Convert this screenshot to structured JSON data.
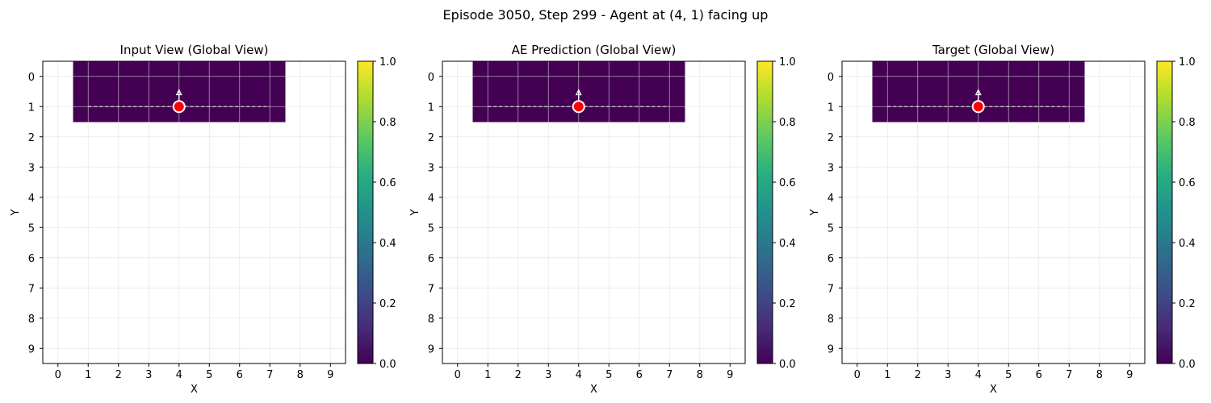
{
  "figure": {
    "suptitle": "Episode 3050, Step 299 - Agent at (4, 1) facing up"
  },
  "chart_data": [
    {
      "type": "heatmap",
      "title": "Input View (Global View)",
      "xlabel": "X",
      "ylabel": "Y",
      "xlim": [
        -0.5,
        9.5
      ],
      "ylim": [
        9.5,
        -0.5
      ],
      "xticks": [
        "0",
        "1",
        "2",
        "3",
        "4",
        "5",
        "6",
        "7",
        "8",
        "9"
      ],
      "yticks": [
        "0",
        "1",
        "2",
        "3",
        "4",
        "5",
        "6",
        "7",
        "8",
        "9"
      ],
      "grid": true,
      "cells": {
        "x_range": [
          1,
          7
        ],
        "y_range": [
          0,
          1
        ],
        "value": 0.0
      },
      "agent": {
        "x": 4,
        "y": 1,
        "facing": "up"
      },
      "path": {
        "y": 1,
        "x_from": 1,
        "x_to": 7
      },
      "colorbar": {
        "min": 0.0,
        "max": 1.0,
        "ticks": [
          "0.0",
          "0.2",
          "0.4",
          "0.6",
          "0.8",
          "1.0"
        ],
        "colormap": "viridis"
      }
    },
    {
      "type": "heatmap",
      "title": "AE Prediction (Global View)",
      "xlabel": "X",
      "ylabel": "Y",
      "xlim": [
        -0.5,
        9.5
      ],
      "ylim": [
        9.5,
        -0.5
      ],
      "xticks": [
        "0",
        "1",
        "2",
        "3",
        "4",
        "5",
        "6",
        "7",
        "8",
        "9"
      ],
      "yticks": [
        "0",
        "1",
        "2",
        "3",
        "4",
        "5",
        "6",
        "7",
        "8",
        "9"
      ],
      "grid": true,
      "cells": {
        "x_range": [
          1,
          7
        ],
        "y_range": [
          0,
          1
        ],
        "value": 0.0
      },
      "agent": {
        "x": 4,
        "y": 1,
        "facing": "up"
      },
      "path": {
        "y": 1,
        "x_from": 1,
        "x_to": 7
      },
      "colorbar": {
        "min": 0.0,
        "max": 1.0,
        "ticks": [
          "0.0",
          "0.2",
          "0.4",
          "0.6",
          "0.8",
          "1.0"
        ],
        "colormap": "viridis"
      }
    },
    {
      "type": "heatmap",
      "title": "Target (Global View)",
      "xlabel": "X",
      "ylabel": "Y",
      "xlim": [
        -0.5,
        9.5
      ],
      "ylim": [
        9.5,
        -0.5
      ],
      "xticks": [
        "0",
        "1",
        "2",
        "3",
        "4",
        "5",
        "6",
        "7",
        "8",
        "9"
      ],
      "yticks": [
        "0",
        "1",
        "2",
        "3",
        "4",
        "5",
        "6",
        "7",
        "8",
        "9"
      ],
      "grid": true,
      "cells": {
        "x_range": [
          1,
          7
        ],
        "y_range": [
          0,
          1
        ],
        "value": 0.0
      },
      "agent": {
        "x": 4,
        "y": 1,
        "facing": "up"
      },
      "path": {
        "y": 1,
        "x_from": 1,
        "x_to": 7
      },
      "colorbar": {
        "min": 0.0,
        "max": 1.0,
        "ticks": [
          "0.0",
          "0.2",
          "0.4",
          "0.6",
          "0.8",
          "1.0"
        ],
        "colormap": "viridis"
      }
    }
  ],
  "colors": {
    "cell_fill": "#440154",
    "agent_fill": "#ff0000",
    "agent_ring": "#ffffff",
    "path_line": "#d0d0d0",
    "grid": "#dddddd",
    "axis": "#000000"
  }
}
